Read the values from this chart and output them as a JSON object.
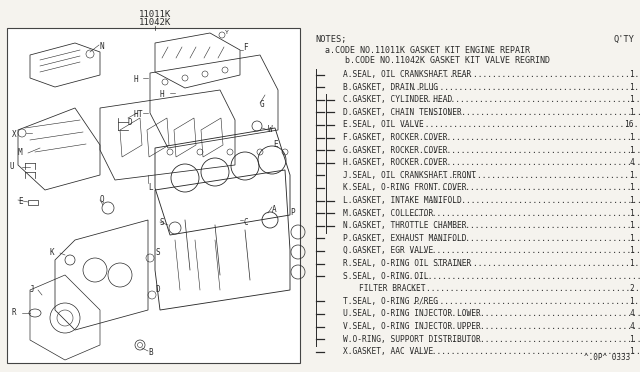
{
  "title_codes_line1": "11011K",
  "title_codes_line2": "11042K",
  "notes_header": "NOTES;",
  "qty_header": "Q'TY",
  "note_a": "a.CODE NO.11011K GASKET KIT ENGINE REPAIR",
  "note_b": "  b.CODE NO.11042K GASKET KIT VALVE REGRIND",
  "parts": [
    {
      "code": "A",
      "desc": "SEAL, OIL CRANKSHAFT REAR",
      "qty": "1",
      "in_a": true,
      "in_b": false
    },
    {
      "code": "B",
      "desc": "GASKET, DRAIN PLUG",
      "qty": "1",
      "in_a": true,
      "in_b": false
    },
    {
      "code": "C",
      "desc": "GASKET, CYLINDER HEAD",
      "qty": "1",
      "in_a": true,
      "in_b": true
    },
    {
      "code": "D",
      "desc": "GASKET, CHAIN TENSIONER",
      "qty": "1",
      "in_a": true,
      "in_b": true
    },
    {
      "code": "E",
      "desc": "SEAL, OIL VALVE",
      "qty": "16",
      "in_a": true,
      "in_b": true
    },
    {
      "code": "F",
      "desc": "GASKET, ROCKER COVER",
      "qty": "1",
      "in_a": true,
      "in_b": true
    },
    {
      "code": "G",
      "desc": "GASKET, ROCKER COVER",
      "qty": "1",
      "in_a": true,
      "in_b": true
    },
    {
      "code": "H",
      "desc": "GASKET, ROCKER COVER",
      "qty": "4",
      "in_a": true,
      "in_b": true
    },
    {
      "code": "J",
      "desc": "SEAL, OIL CRANKSHAFT FRONT",
      "qty": "1",
      "in_a": true,
      "in_b": false
    },
    {
      "code": "K",
      "desc": "SEAL, O-RING FRONT COVER",
      "qty": "1",
      "in_a": true,
      "in_b": false
    },
    {
      "code": "L",
      "desc": "GASKET, INTAKE MANIFOLD",
      "qty": "1",
      "in_a": true,
      "in_b": true
    },
    {
      "code": "M",
      "desc": "GASKET, COLLECTOR",
      "qty": "1",
      "in_a": true,
      "in_b": true
    },
    {
      "code": "N",
      "desc": "GASKET, THROTTLE CHAMBER",
      "qty": "1",
      "in_a": true,
      "in_b": true
    },
    {
      "code": "P",
      "desc": "GASKET, EXHAUST MANIFOLD",
      "qty": "1",
      "in_a": true,
      "in_b": false
    },
    {
      "code": "Q",
      "desc": "GASKET, EGR VALVE",
      "qty": "1",
      "in_a": true,
      "in_b": false
    },
    {
      "code": "R",
      "desc": "SEAL, O-RING OIL STRAINER",
      "qty": "1",
      "in_a": true,
      "in_b": false
    },
    {
      "code": "S",
      "desc": "SEAL, O-RING OIL",
      "desc2": "FILTER BRACKET",
      "qty": "2",
      "in_a": true,
      "in_b": false
    },
    {
      "code": "T",
      "desc": "SEAL, O-RING P/REG",
      "qty": "1",
      "in_a": true,
      "in_b": false
    },
    {
      "code": "U",
      "desc": "SEAL, O-RING INJECTOR LOWER",
      "qty": "4",
      "in_a": true,
      "in_b": false
    },
    {
      "code": "V",
      "desc": "SEAL, O-RING INJECTOR UPPER",
      "qty": "4",
      "in_a": true,
      "in_b": false
    },
    {
      "code": "W",
      "desc": "O-RING, SUPPORT DISTRIBUTOR",
      "qty": "1",
      "in_a": true,
      "in_b": false
    },
    {
      "code": "X",
      "desc": "GASKET, AAC VALVE",
      "qty": "1",
      "in_a": true,
      "in_b": false
    }
  ],
  "bg_color": "#f5f3ee",
  "text_color": "#2a2a2a",
  "diagram_bg": "#ffffff",
  "border_color": "#444444",
  "footer": "^.0P^ 0333"
}
